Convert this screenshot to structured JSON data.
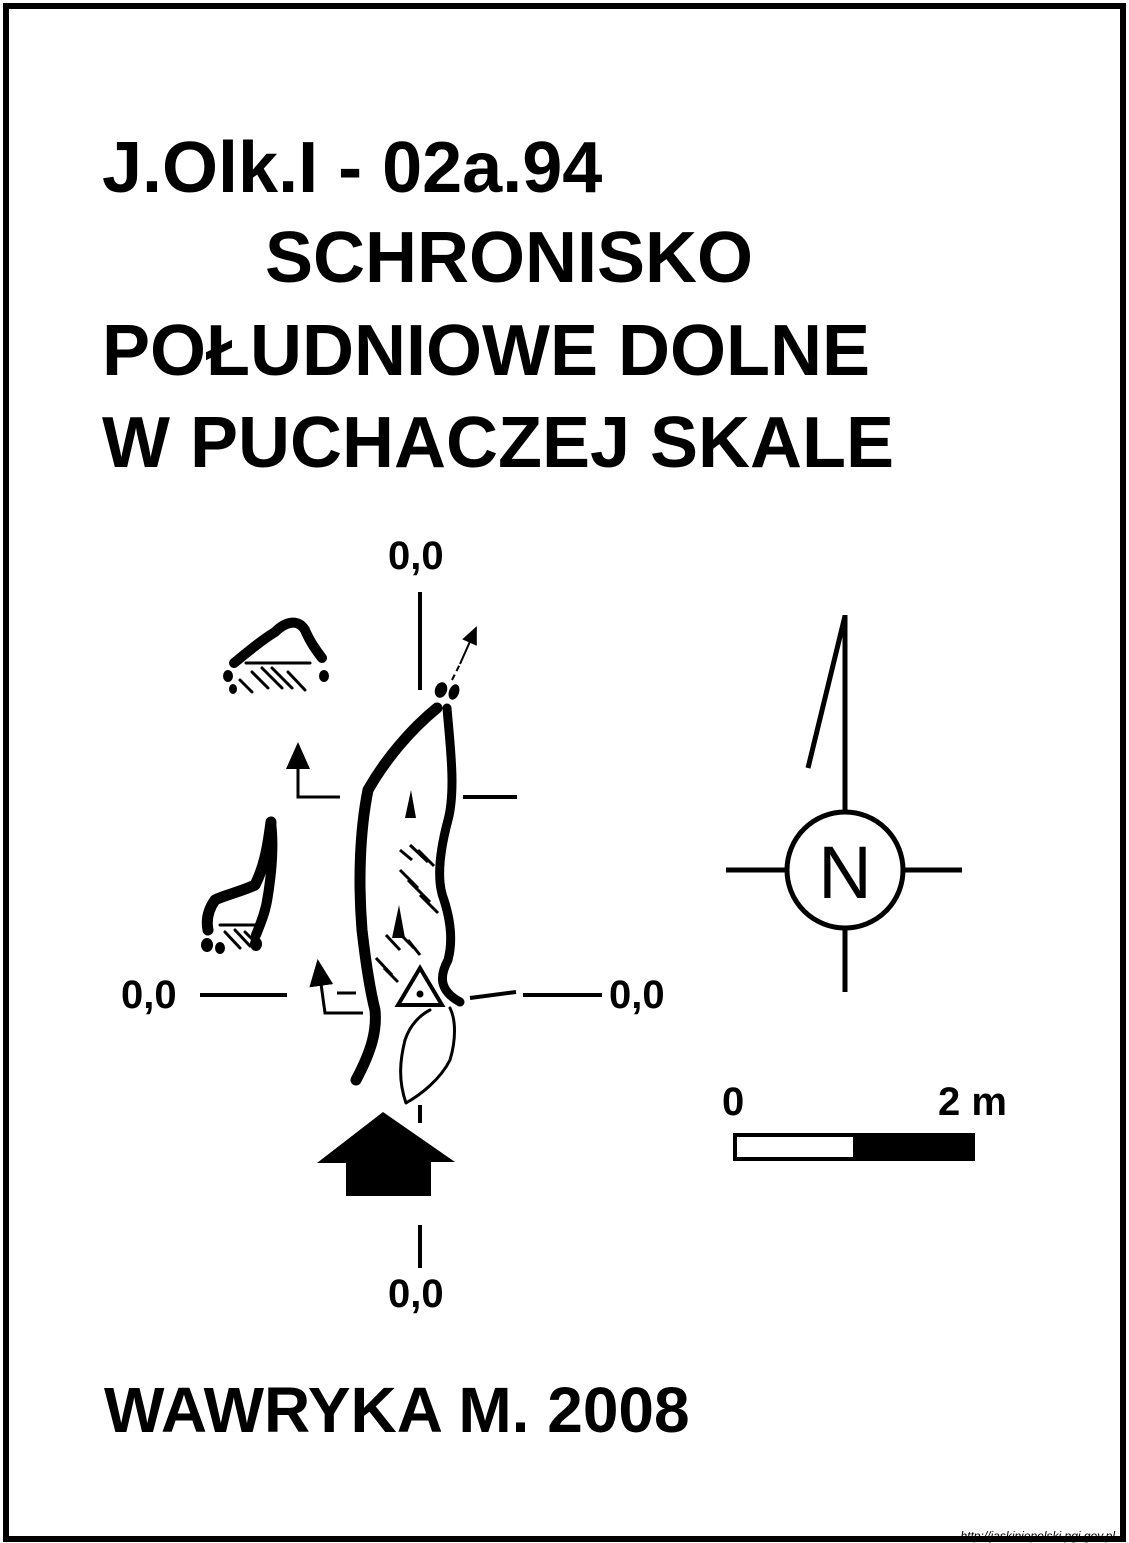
{
  "title": {
    "code": "J.Olk.I - 02a.94",
    "line1": "SCHRONISKO",
    "line2": "POŁUDNIOWE DOLNE",
    "line3": "W PUCHACZEJ SKALE"
  },
  "datum_labels": {
    "top": "0,0",
    "left": "0,0",
    "right": "0,0",
    "bottom": "0,0"
  },
  "north_arrow": {
    "label": "N",
    "icon": "north-arrow-icon"
  },
  "scale_bar": {
    "start_label": "0",
    "end_label": "2 m",
    "fill_colors": [
      "#ffffff",
      "#000000"
    ]
  },
  "author": "WAWRYKA M. 2008",
  "source": "http://jaskiniepolski.pgi.gov.pl"
}
